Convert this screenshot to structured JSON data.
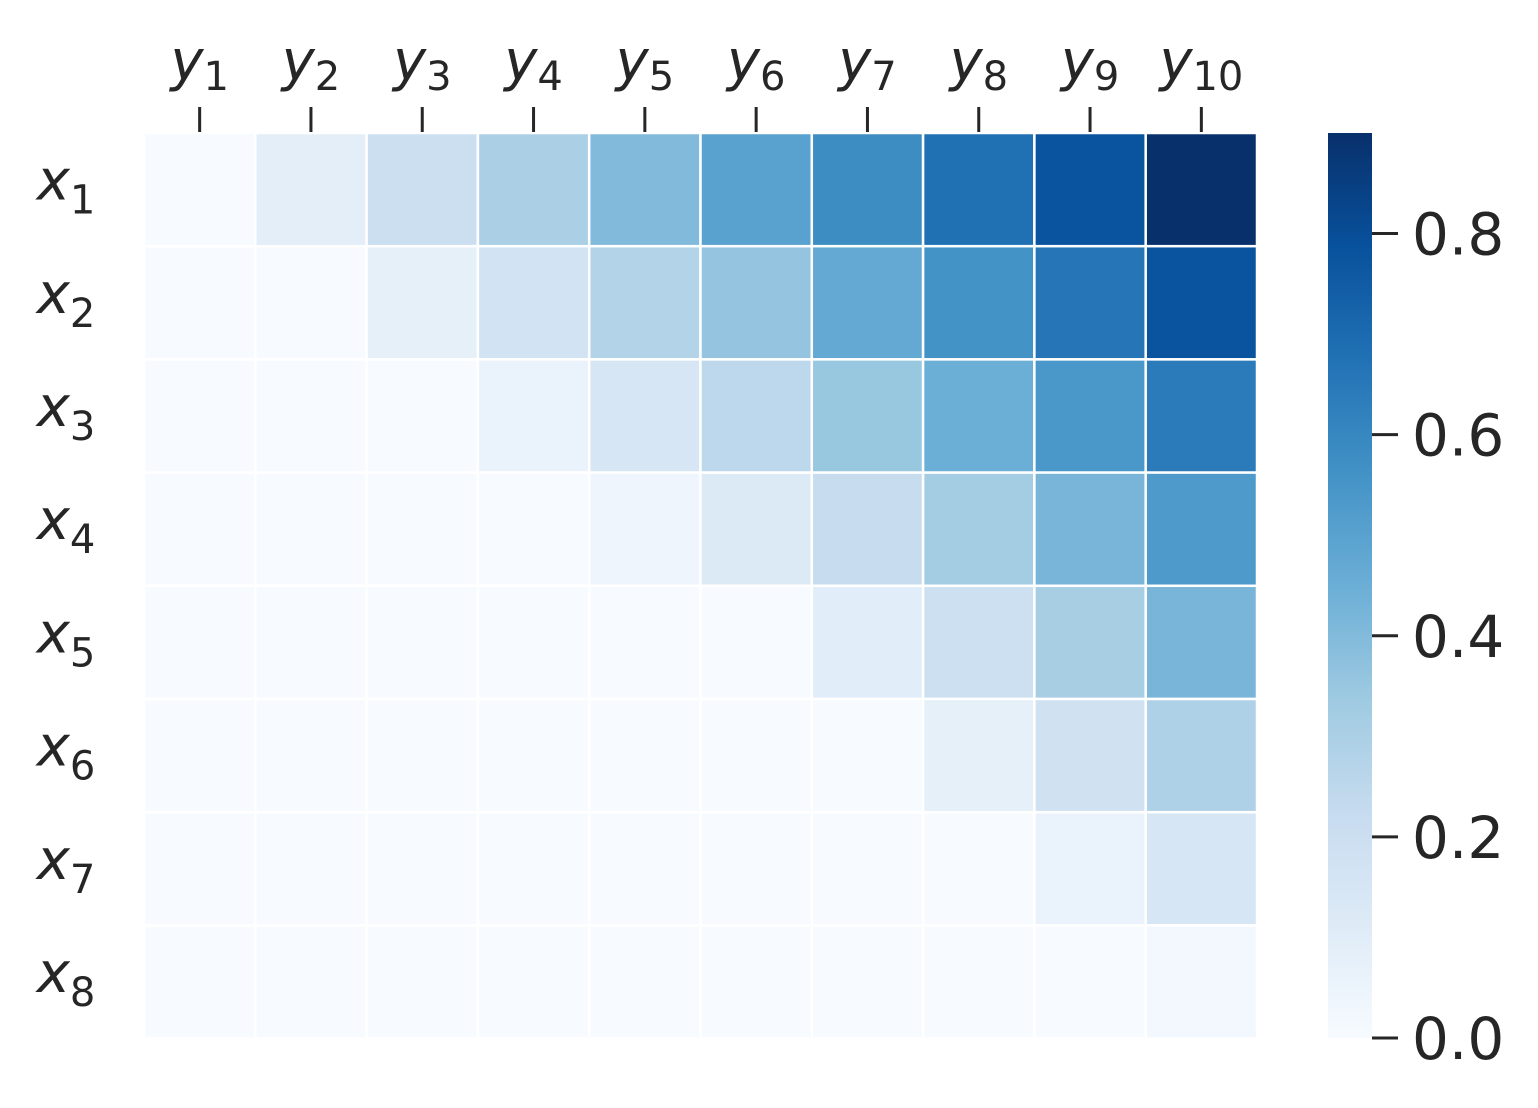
{
  "chart_data": {
    "type": "heatmap",
    "title": "",
    "xlabel": "",
    "ylabel": "",
    "x_categories": [
      {
        "base": "y",
        "sub": "1"
      },
      {
        "base": "y",
        "sub": "2"
      },
      {
        "base": "y",
        "sub": "3"
      },
      {
        "base": "y",
        "sub": "4"
      },
      {
        "base": "y",
        "sub": "5"
      },
      {
        "base": "y",
        "sub": "6"
      },
      {
        "base": "y",
        "sub": "7"
      },
      {
        "base": "y",
        "sub": "8"
      },
      {
        "base": "y",
        "sub": "9"
      },
      {
        "base": "y",
        "sub": "10"
      }
    ],
    "y_categories": [
      {
        "base": "x",
        "sub": "1"
      },
      {
        "base": "x",
        "sub": "2"
      },
      {
        "base": "x",
        "sub": "3"
      },
      {
        "base": "x",
        "sub": "4"
      },
      {
        "base": "x",
        "sub": "5"
      },
      {
        "base": "x",
        "sub": "6"
      },
      {
        "base": "x",
        "sub": "7"
      },
      {
        "base": "x",
        "sub": "8"
      }
    ],
    "values": [
      [
        0.0,
        0.09,
        0.2,
        0.3,
        0.4,
        0.5,
        0.58,
        0.68,
        0.78,
        0.9
      ],
      [
        0.0,
        0.0,
        0.08,
        0.17,
        0.28,
        0.36,
        0.47,
        0.56,
        0.66,
        0.78
      ],
      [
        0.0,
        0.0,
        0.0,
        0.06,
        0.15,
        0.25,
        0.35,
        0.45,
        0.54,
        0.64
      ],
      [
        0.0,
        0.0,
        0.0,
        0.0,
        0.04,
        0.12,
        0.22,
        0.32,
        0.42,
        0.53
      ],
      [
        0.0,
        0.0,
        0.0,
        0.0,
        0.0,
        0.0,
        0.1,
        0.19,
        0.31,
        0.42
      ],
      [
        0.0,
        0.0,
        0.0,
        0.0,
        0.0,
        0.0,
        0.0,
        0.08,
        0.18,
        0.29
      ],
      [
        0.0,
        0.0,
        0.0,
        0.0,
        0.0,
        0.0,
        0.0,
        0.0,
        0.06,
        0.15
      ],
      [
        0.0,
        0.0,
        0.0,
        0.0,
        0.0,
        0.0,
        0.0,
        0.0,
        0.0,
        0.02
      ]
    ],
    "colormap": "Blues",
    "colormap_stops": [
      "#f7fbff",
      "#deebf7",
      "#c6dbef",
      "#9ecae1",
      "#6baed6",
      "#4292c6",
      "#2171b5",
      "#08519c",
      "#08306b"
    ],
    "value_range": [
      0,
      0.9
    ],
    "colorbar": {
      "ticks": [
        0.0,
        0.2,
        0.4,
        0.6,
        0.8
      ],
      "tick_labels": [
        "0.0",
        "0.2",
        "0.4",
        "0.6",
        "0.8"
      ]
    },
    "cell_border_color": "#ffffff",
    "x_tick_position": "top",
    "grid": false,
    "legend": "colorbar-right"
  }
}
